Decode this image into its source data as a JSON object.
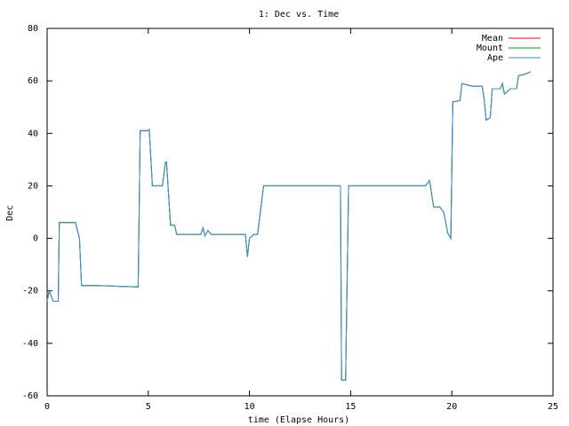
{
  "chart_data": {
    "type": "line",
    "title": "1: Dec vs. Time",
    "x_label": "time (Elapse Hours)",
    "y_label": "Dec",
    "x": [
      0,
      0.1,
      0.3,
      0.55,
      0.6,
      1.4,
      1.6,
      1.7,
      2.5,
      4.5,
      4.6,
      5.0,
      5.05,
      5.2,
      5.7,
      5.85,
      5.9,
      6.1,
      6.3,
      6.4,
      7.6,
      7.7,
      7.8,
      7.95,
      8.1,
      9.8,
      9.9,
      10.0,
      10.2,
      10.4,
      10.7,
      14.5,
      14.55,
      14.75,
      14.9,
      18.7,
      18.9,
      19.1,
      19.4,
      19.6,
      19.8,
      19.95,
      20.05,
      20.4,
      20.5,
      21.0,
      21.5,
      21.6,
      21.7,
      21.9,
      22.0,
      22.4,
      22.5,
      22.6,
      22.9,
      23.2,
      23.3,
      23.6,
      23.9
    ],
    "series": [
      {
        "name": "Mean",
        "color": "#ff0000",
        "values": [
          -24,
          -20,
          -24,
          -24,
          6,
          6,
          0,
          -18,
          -18,
          -18.5,
          41,
          41,
          41.5,
          20,
          20,
          29,
          29,
          5,
          5,
          1.5,
          1.5,
          4,
          1,
          3,
          1.5,
          1.5,
          -7,
          0,
          1.5,
          1.5,
          20,
          20,
          -54,
          -54,
          20,
          20,
          22,
          12,
          12,
          10,
          2,
          0,
          52,
          52.5,
          59,
          58,
          58,
          53,
          45,
          46,
          57,
          57,
          59,
          55,
          57,
          57,
          62,
          62.5,
          63.5
        ]
      },
      {
        "name": "Mount",
        "color": "#00a000",
        "values": [
          -24,
          -20,
          -24,
          -24,
          6,
          6,
          0,
          -18,
          -18,
          -18.5,
          41,
          41,
          41.5,
          20,
          20,
          29,
          29,
          5,
          5,
          1.5,
          1.5,
          4,
          1,
          3,
          1.5,
          1.5,
          -7,
          0,
          1.5,
          1.5,
          20,
          20,
          -54,
          -54,
          20,
          20,
          22,
          12,
          12,
          10,
          2,
          0,
          52,
          52.5,
          59,
          58,
          58,
          53,
          45,
          46,
          57,
          57,
          59,
          55,
          57,
          57,
          62,
          62.5,
          63.5
        ]
      },
      {
        "name": "Ape",
        "color": "#3a8fd6",
        "values": [
          -24,
          -20,
          -24,
          -24,
          6,
          6,
          0,
          -18,
          -18,
          -18.5,
          41,
          41,
          41.5,
          20,
          20,
          29,
          29,
          5,
          5,
          1.5,
          1.5,
          4,
          1,
          3,
          1.5,
          1.5,
          -7,
          0,
          1.5,
          1.5,
          20,
          20,
          -54,
          -54,
          20,
          20,
          22,
          12,
          12,
          10,
          2,
          0,
          52,
          52.5,
          59,
          58,
          58,
          53,
          45,
          46,
          57,
          57,
          59,
          55,
          57,
          57,
          62,
          62.5,
          63.5
        ]
      }
    ],
    "xlim": [
      0,
      25
    ],
    "xticks": [
      0,
      5,
      10,
      15,
      20,
      25
    ],
    "ylim": [
      -60,
      80
    ],
    "yticks": [
      -60,
      -40,
      -20,
      0,
      20,
      40,
      60,
      80
    ],
    "legend": "upper-right"
  }
}
